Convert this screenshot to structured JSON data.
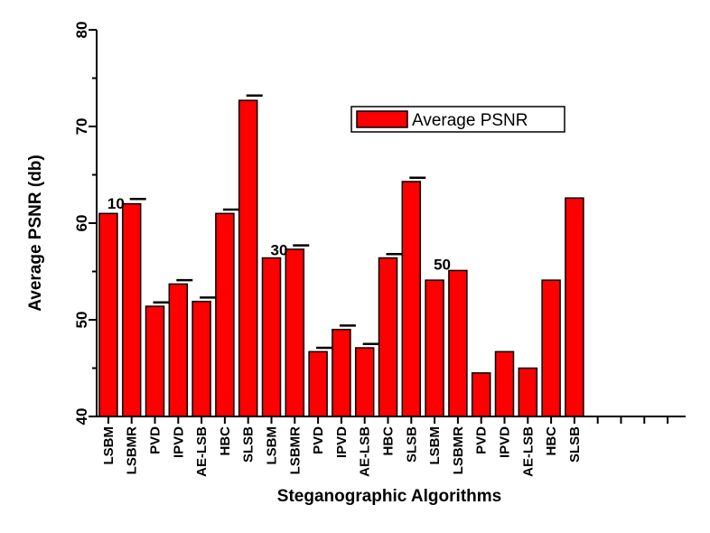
{
  "chart_data": {
    "type": "bar",
    "title": "",
    "xlabel": "Steganographic Algorithms",
    "ylabel": "Average PSNR (db)",
    "ylim": [
      40,
      80
    ],
    "yticks": [
      40,
      50,
      60,
      70,
      80
    ],
    "legend": {
      "position": "top-right",
      "entries": [
        "Average PSNR"
      ]
    },
    "group_labels": [
      {
        "label": "10",
        "category_index": 0,
        "y": 61.3
      },
      {
        "label": "30",
        "category_index": 7,
        "y": 56.5
      },
      {
        "label": "50",
        "category_index": 14,
        "y": 55.0
      }
    ],
    "categories": [
      "LSBM",
      "LSBMR",
      "PVD",
      "IPVD",
      "AE-LSB",
      "HBC",
      "SLSB",
      "LSBM",
      "LSBMR",
      "PVD",
      "IPVD",
      "AE-LSB",
      "HBC",
      "SLSB",
      "LSBM",
      "LSBMR",
      "PVD",
      "IPVD",
      "AE-LSB",
      "HBC",
      "SLSB"
    ],
    "x_tick_count": 30,
    "series": [
      {
        "name": "Average PSNR",
        "color": "#ff0000",
        "values": [
          61.0,
          62.0,
          51.4,
          53.7,
          51.9,
          61.0,
          72.7,
          56.4,
          57.3,
          46.7,
          49.0,
          47.1,
          56.4,
          64.3,
          54.1,
          55.1,
          44.5,
          46.7,
          45.0,
          54.1,
          62.6
        ],
        "error_caps": [
          null,
          62.5,
          51.8,
          54.1,
          52.3,
          61.4,
          73.2,
          null,
          57.7,
          47.1,
          49.4,
          47.5,
          56.8,
          64.7,
          null,
          null,
          null,
          null,
          null,
          null,
          null
        ]
      }
    ]
  }
}
